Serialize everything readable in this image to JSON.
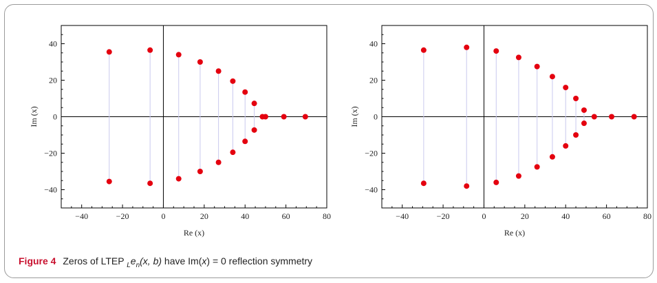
{
  "caption": {
    "label": "Figure 4",
    "text_before": "Zeros of LTEP",
    "math_prefix": "L",
    "math_body": "e",
    "math_sub": "n",
    "math_args": "(x, b)",
    "text_mid": "have Im(",
    "text_var": "x",
    "text_after": ") = 0 reflection symmetry"
  },
  "chart_data": [
    {
      "type": "scatter",
      "xlabel": "Re (x)",
      "ylabel": "Im (x)",
      "xlim": [
        -50,
        80
      ],
      "ylim": [
        -50,
        50
      ],
      "xticks": [
        -40,
        -20,
        0,
        20,
        40,
        60,
        80
      ],
      "yticks": [
        -40,
        -20,
        0,
        20,
        40
      ],
      "conjugate_pairs": [
        {
          "re": -26.5,
          "im": 35.5
        },
        {
          "re": -6.5,
          "im": 36.5
        },
        {
          "re": 7.5,
          "im": 34.0
        },
        {
          "re": 18.0,
          "im": 30.0
        },
        {
          "re": 27.0,
          "im": 25.0
        },
        {
          "re": 34.0,
          "im": 19.5
        },
        {
          "re": 40.0,
          "im": 13.5
        },
        {
          "re": 44.5,
          "im": 7.3
        }
      ],
      "real_zeros": [
        48.5,
        50.0,
        59.0,
        69.5
      ],
      "point_color": "#e4000f",
      "connector_color": "#c9c9ee"
    },
    {
      "type": "scatter",
      "xlabel": "Re (x)",
      "ylabel": "Im (x)",
      "xlim": [
        -50,
        80
      ],
      "ylim": [
        -50,
        50
      ],
      "xticks": [
        -40,
        -20,
        0,
        20,
        40,
        60,
        80
      ],
      "yticks": [
        -40,
        -20,
        0,
        20,
        40
      ],
      "conjugate_pairs": [
        {
          "re": -29.5,
          "im": 36.5
        },
        {
          "re": -8.5,
          "im": 38.0
        },
        {
          "re": 6.0,
          "im": 36.0
        },
        {
          "re": 17.0,
          "im": 32.5
        },
        {
          "re": 26.0,
          "im": 27.5
        },
        {
          "re": 33.5,
          "im": 22.0
        },
        {
          "re": 40.0,
          "im": 16.0
        },
        {
          "re": 45.0,
          "im": 10.0
        },
        {
          "re": 49.0,
          "im": 3.6
        }
      ],
      "real_zeros": [
        54.0,
        62.5,
        73.5
      ],
      "point_color": "#e4000f",
      "connector_color": "#c9c9ee"
    }
  ]
}
